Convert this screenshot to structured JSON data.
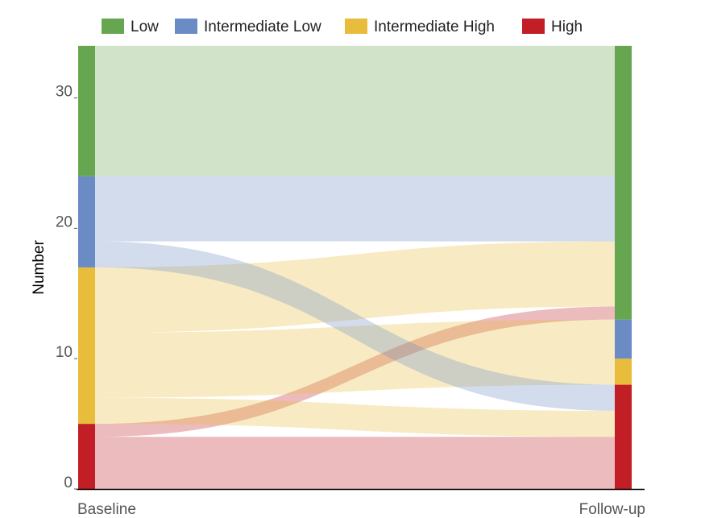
{
  "chart_data": {
    "type": "alluvial",
    "title": "",
    "ylabel": "Number",
    "ylim": [
      0,
      34
    ],
    "yticks": [
      0,
      10,
      20,
      30
    ],
    "ytick_labels": [
      "0",
      "10",
      "20",
      "30"
    ],
    "stages": [
      "Baseline",
      "Follow-up"
    ],
    "legend": [
      {
        "name": "Low",
        "color": "#67a651"
      },
      {
        "name": "Intermediate Low",
        "color": "#6a8bc4"
      },
      {
        "name": "Intermediate High",
        "color": "#e8bd3c"
      },
      {
        "name": "High",
        "color": "#c11f25"
      }
    ],
    "legend_position": "top",
    "baseline_nodes": [
      {
        "category": "High",
        "from": 0,
        "to": 5
      },
      {
        "category": "Intermediate High",
        "from": 5,
        "to": 17
      },
      {
        "category": "Intermediate Low",
        "from": 17,
        "to": 24
      },
      {
        "category": "Low",
        "from": 24,
        "to": 34
      }
    ],
    "followup_nodes": [
      {
        "category": "High",
        "from": 0,
        "to": 8
      },
      {
        "category": "Intermediate High",
        "from": 8,
        "to": 10
      },
      {
        "category": "Intermediate Low",
        "from": 10,
        "to": 13
      },
      {
        "category": "Low",
        "from": 13,
        "to": 34
      }
    ],
    "flows": [
      {
        "source": "High",
        "src": [
          0,
          4
        ],
        "dst": [
          0,
          4
        ],
        "count": 4
      },
      {
        "source": "High",
        "src": [
          4,
          5
        ],
        "dst": [
          13,
          14
        ],
        "count": 1
      },
      {
        "source": "Intermediate High",
        "src": [
          5,
          7
        ],
        "dst": [
          4,
          6
        ],
        "count": 2
      },
      {
        "source": "Intermediate High",
        "src": [
          7,
          12
        ],
        "dst": [
          8,
          13
        ],
        "count": 5
      },
      {
        "source": "Intermediate High",
        "src": [
          12,
          17
        ],
        "dst": [
          14,
          19
        ],
        "count": 5
      },
      {
        "source": "Intermediate Low",
        "src": [
          17,
          19
        ],
        "dst": [
          6,
          8
        ],
        "count": 2
      },
      {
        "source": "Intermediate Low",
        "src": [
          19,
          24
        ],
        "dst": [
          19,
          24
        ],
        "count": 5
      },
      {
        "source": "Low",
        "src": [
          24,
          34
        ],
        "dst": [
          24,
          34
        ],
        "count": 10
      }
    ]
  }
}
